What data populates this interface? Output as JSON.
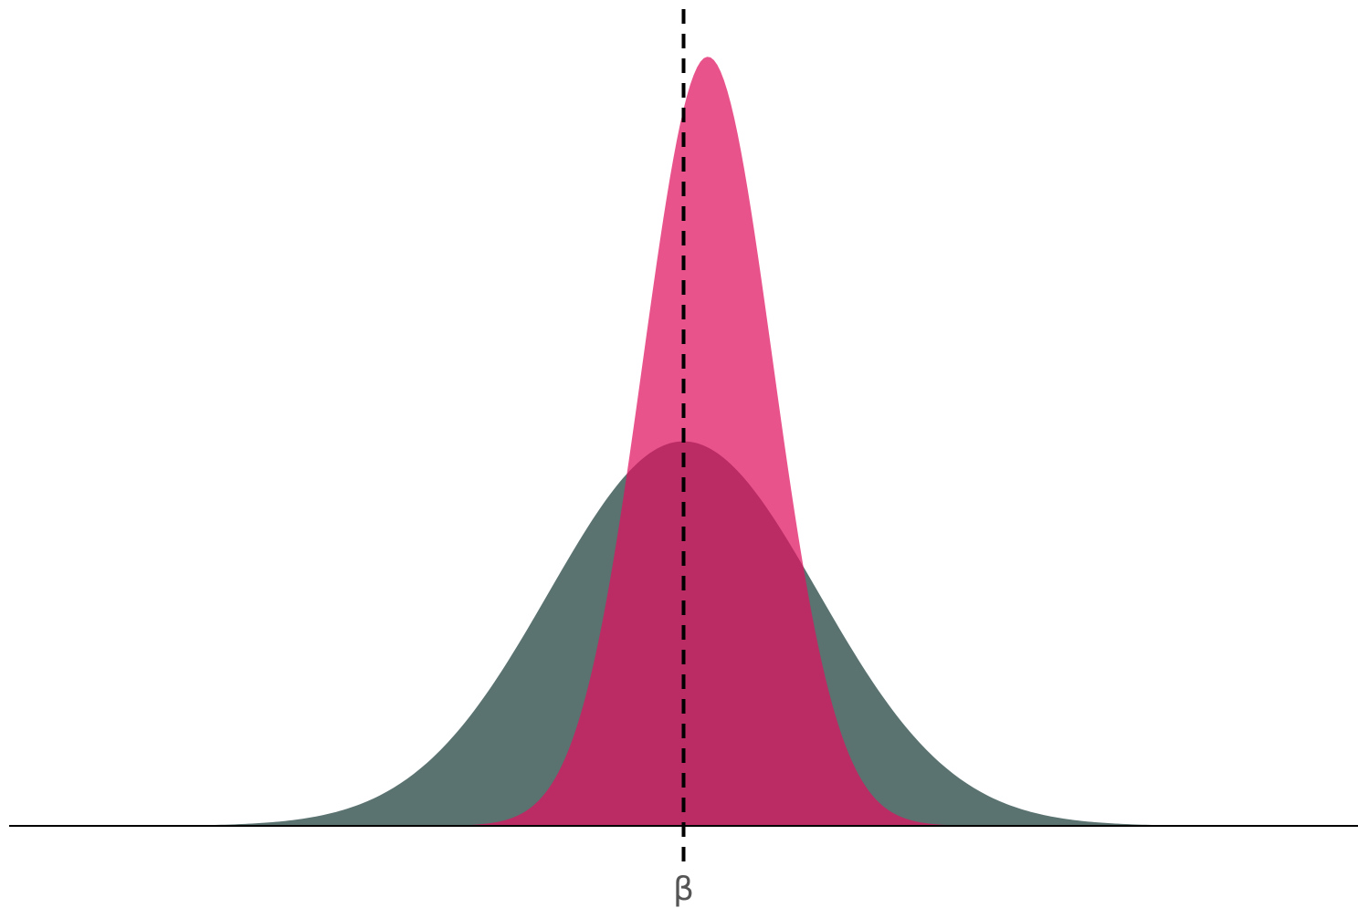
{
  "chart_data": {
    "type": "area",
    "title": "",
    "xlabel": "",
    "ylabel": "",
    "xlim": [
      -5,
      5
    ],
    "ylim": [
      0,
      1.05
    ],
    "grid": false,
    "axes": {
      "x_axis_line": true,
      "y_axis_line": false
    },
    "x_ticks": [
      {
        "value": 0,
        "label": "β"
      }
    ],
    "reference_line": {
      "x": 0,
      "style": "dashed",
      "color": "#000000"
    },
    "series": [
      {
        "distribution": "normal",
        "mean": 0,
        "sd": 1,
        "peak": 0.5,
        "color": "#5a7270",
        "opacity": 1.0
      },
      {
        "distribution": "normal",
        "mean": 0.18,
        "sd": 0.48,
        "peak": 1.0,
        "color": "#e0115f",
        "opacity": 0.72
      }
    ]
  }
}
